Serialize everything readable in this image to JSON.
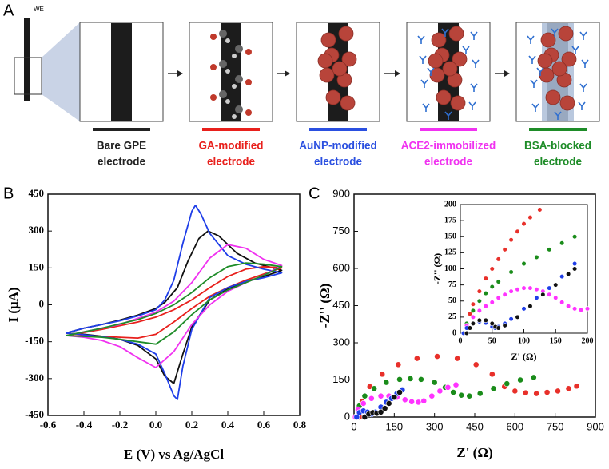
{
  "panel_labels": [
    "A",
    "B",
    "C"
  ],
  "schematic": {
    "we_label": "WE",
    "steps": [
      {
        "lines": [
          "Bare GPE",
          "electrode"
        ],
        "color": "#222222"
      },
      {
        "lines": [
          "GA-modified",
          "electrode"
        ],
        "color": "#e8201c"
      },
      {
        "lines": [
          "AuNP-modified",
          "electrode"
        ],
        "color": "#2a4fe0"
      },
      {
        "lines": [
          "ACE2-immobilized",
          "electrode"
        ],
        "color": "#f032f0"
      },
      {
        "lines": [
          "BSA-blocked",
          "electrode"
        ],
        "color": "#1e8c28"
      }
    ]
  },
  "chart_data": [
    {
      "type": "line",
      "xlabel": "E (V) vs Ag/AgCl",
      "ylabel": "I (μA)",
      "xlim": [
        -0.6,
        0.8
      ],
      "xticks": [
        -0.6,
        -0.4,
        -0.2,
        {
          "value": 0,
          "label": "0.0"
        },
        0.2,
        0.4,
        0.6,
        0.8
      ],
      "ylim": [
        -450,
        450
      ],
      "yticks": [
        -450,
        -300,
        -150,
        0,
        150,
        300,
        450
      ],
      "series": [
        {
          "color": "#111111",
          "x": [
            -0.5,
            -0.4,
            -0.3,
            -0.2,
            -0.1,
            0,
            0.05,
            0.12,
            0.18,
            0.24,
            0.29,
            0.35,
            0.45,
            0.55,
            0.65,
            0.7,
            0.6,
            0.5,
            0.4,
            0.3,
            0.2,
            0.15,
            0.1,
            0.05,
            0,
            -0.1,
            -0.2,
            -0.3,
            -0.4,
            -0.5
          ],
          "values": [
            -115,
            -95,
            -80,
            -62,
            -42,
            -15,
            10,
            70,
            180,
            270,
            300,
            280,
            210,
            170,
            150,
            140,
            115,
            95,
            65,
            20,
            -90,
            -200,
            -320,
            -290,
            -220,
            -165,
            -140,
            -128,
            -120,
            -115
          ]
        },
        {
          "color": "#e8201c",
          "x": [
            -0.5,
            -0.3,
            -0.1,
            0,
            0.1,
            0.2,
            0.3,
            0.4,
            0.5,
            0.6,
            0.7,
            0.6,
            0.5,
            0.4,
            0.3,
            0.2,
            0.1,
            0,
            -0.1,
            -0.2,
            -0.3,
            -0.5
          ],
          "values": [
            -125,
            -100,
            -70,
            -50,
            -20,
            20,
            70,
            115,
            145,
            155,
            150,
            125,
            100,
            70,
            35,
            -15,
            -70,
            -120,
            -135,
            -132,
            -128,
            -125
          ]
        },
        {
          "color": "#1f3ee8",
          "x": [
            -0.5,
            -0.4,
            -0.3,
            -0.2,
            -0.1,
            0,
            0.05,
            0.1,
            0.15,
            0.2,
            0.22,
            0.25,
            0.3,
            0.4,
            0.5,
            0.6,
            0.7,
            0.6,
            0.5,
            0.4,
            0.3,
            0.2,
            0.15,
            0.12,
            0.1,
            0.05,
            0,
            -0.1,
            -0.2,
            -0.3,
            -0.4,
            -0.5
          ],
          "values": [
            -115,
            -95,
            -80,
            -65,
            -45,
            -20,
            20,
            100,
            250,
            380,
            405,
            370,
            290,
            200,
            165,
            145,
            130,
            110,
            95,
            70,
            30,
            -100,
            -250,
            -385,
            -370,
            -280,
            -200,
            -160,
            -140,
            -130,
            -122,
            -115
          ]
        },
        {
          "color": "#f032f0",
          "x": [
            -0.5,
            -0.4,
            -0.3,
            -0.2,
            -0.1,
            0,
            0.1,
            0.2,
            0.3,
            0.4,
            0.5,
            0.6,
            0.7,
            0.6,
            0.5,
            0.4,
            0.3,
            0.2,
            0.1,
            0,
            -0.1,
            -0.2,
            -0.3,
            -0.4,
            -0.5
          ],
          "values": [
            -125,
            -110,
            -95,
            -80,
            -55,
            -30,
            15,
            90,
            190,
            245,
            230,
            185,
            160,
            120,
            90,
            55,
            0,
            -80,
            -190,
            -255,
            -215,
            -170,
            -145,
            -132,
            -125
          ]
        },
        {
          "color": "#1e8c28",
          "x": [
            -0.5,
            -0.3,
            -0.1,
            0,
            0.1,
            0.2,
            0.3,
            0.4,
            0.5,
            0.6,
            0.7,
            0.6,
            0.5,
            0.4,
            0.3,
            0.2,
            0.1,
            0,
            -0.1,
            -0.2,
            -0.3,
            -0.5
          ],
          "values": [
            -125,
            -95,
            -60,
            -35,
            0,
            50,
            110,
            155,
            170,
            165,
            155,
            120,
            90,
            60,
            20,
            -40,
            -110,
            -160,
            -150,
            -140,
            -132,
            -125
          ]
        }
      ]
    },
    {
      "type": "scatter",
      "xlabel": "Z' (Ω)",
      "ylabel": "-Z'' (Ω)",
      "xlim": [
        0,
        900
      ],
      "xticks": [
        0,
        150,
        300,
        450,
        600,
        750,
        900
      ],
      "ylim": [
        0,
        900
      ],
      "yticks": [
        0,
        150,
        300,
        450,
        600,
        750,
        900
      ],
      "series": [
        {
          "color": "#e8302a",
          "x": [
            20,
            30,
            59,
            105,
            165,
            235,
            310,
            385,
            455,
            515,
            561,
            600,
            640,
            680,
            720,
            760,
            800,
            830
          ],
          "values": [
            0,
            63,
            123,
            173,
            212,
            237,
            245,
            237,
            212,
            173,
            123,
            105,
            98,
            95,
            100,
            105,
            115,
            125
          ]
        },
        {
          "color": "#1a8c1a",
          "x": [
            10,
            20,
            40,
            75,
            120,
            170,
            210,
            250,
            300,
            340,
            370,
            400,
            430,
            470,
            520,
            570,
            620,
            670
          ],
          "values": [
            0,
            45,
            85,
            115,
            140,
            152,
            155,
            152,
            140,
            120,
            100,
            88,
            85,
            95,
            115,
            135,
            150,
            160
          ]
        },
        {
          "color": "#ff33ff",
          "x": [
            5,
            15,
            35,
            65,
            100,
            130,
            160,
            190,
            215,
            240,
            260,
            290,
            320,
            350,
            380
          ],
          "values": [
            0,
            30,
            55,
            75,
            85,
            85,
            80,
            70,
            62,
            60,
            65,
            85,
            105,
            120,
            130
          ]
        },
        {
          "color": "#1f3ee8",
          "x": [
            10,
            20,
            35,
            50,
            65,
            80,
            100,
            120,
            140,
            160,
            180
          ],
          "values": [
            0,
            18,
            25,
            20,
            12,
            20,
            40,
            60,
            75,
            95,
            110
          ]
        },
        {
          "color": "#111111",
          "x": [
            40,
            55,
            70,
            85,
            100,
            115,
            130,
            150,
            170
          ],
          "values": [
            0,
            12,
            18,
            15,
            20,
            35,
            55,
            80,
            100
          ]
        }
      ]
    },
    {
      "type": "scatter",
      "xlabel": "Z' (Ω)",
      "ylabel": "-Z'' (Ω)",
      "xlim": [
        0,
        200
      ],
      "xticks": [
        0,
        50,
        100,
        150,
        200
      ],
      "ylim": [
        0,
        200
      ],
      "yticks": [
        0,
        25,
        50,
        75,
        100,
        125,
        150,
        175,
        200
      ],
      "series": [
        {
          "color": "#e8302a",
          "x": [
            5,
            10,
            15,
            20,
            30,
            40,
            50,
            60,
            70,
            80,
            90,
            100,
            110,
            125
          ],
          "values": [
            0,
            15,
            30,
            45,
            65,
            85,
            100,
            115,
            130,
            145,
            158,
            170,
            180,
            192
          ]
        },
        {
          "color": "#1a8c1a",
          "x": [
            5,
            10,
            20,
            30,
            40,
            50,
            60,
            80,
            100,
            120,
            140,
            160,
            180
          ],
          "values": [
            0,
            15,
            35,
            50,
            62,
            72,
            80,
            95,
            108,
            118,
            130,
            140,
            150
          ]
        },
        {
          "color": "#ff33ff",
          "x": [
            5,
            10,
            20,
            30,
            40,
            50,
            60,
            70,
            80,
            90,
            100,
            110,
            120,
            130,
            140,
            150,
            160,
            170,
            180,
            190,
            200
          ],
          "values": [
            0,
            12,
            25,
            35,
            42,
            48,
            55,
            60,
            65,
            68,
            70,
            70,
            68,
            65,
            60,
            55,
            48,
            42,
            38,
            36,
            38
          ]
        },
        {
          "color": "#1f3ee8",
          "x": [
            5,
            10,
            20,
            30,
            40,
            50,
            55,
            60,
            70,
            80,
            100,
            120,
            140,
            160,
            180
          ],
          "values": [
            0,
            8,
            15,
            18,
            16,
            10,
            8,
            10,
            15,
            22,
            38,
            55,
            70,
            88,
            108
          ]
        },
        {
          "color": "#111111",
          "x": [
            10,
            15,
            20,
            30,
            40,
            50,
            55,
            60,
            70,
            90,
            110,
            130,
            150,
            170,
            180
          ],
          "values": [
            0,
            8,
            15,
            20,
            20,
            15,
            10,
            8,
            12,
            25,
            42,
            60,
            75,
            92,
            100
          ]
        }
      ]
    }
  ]
}
